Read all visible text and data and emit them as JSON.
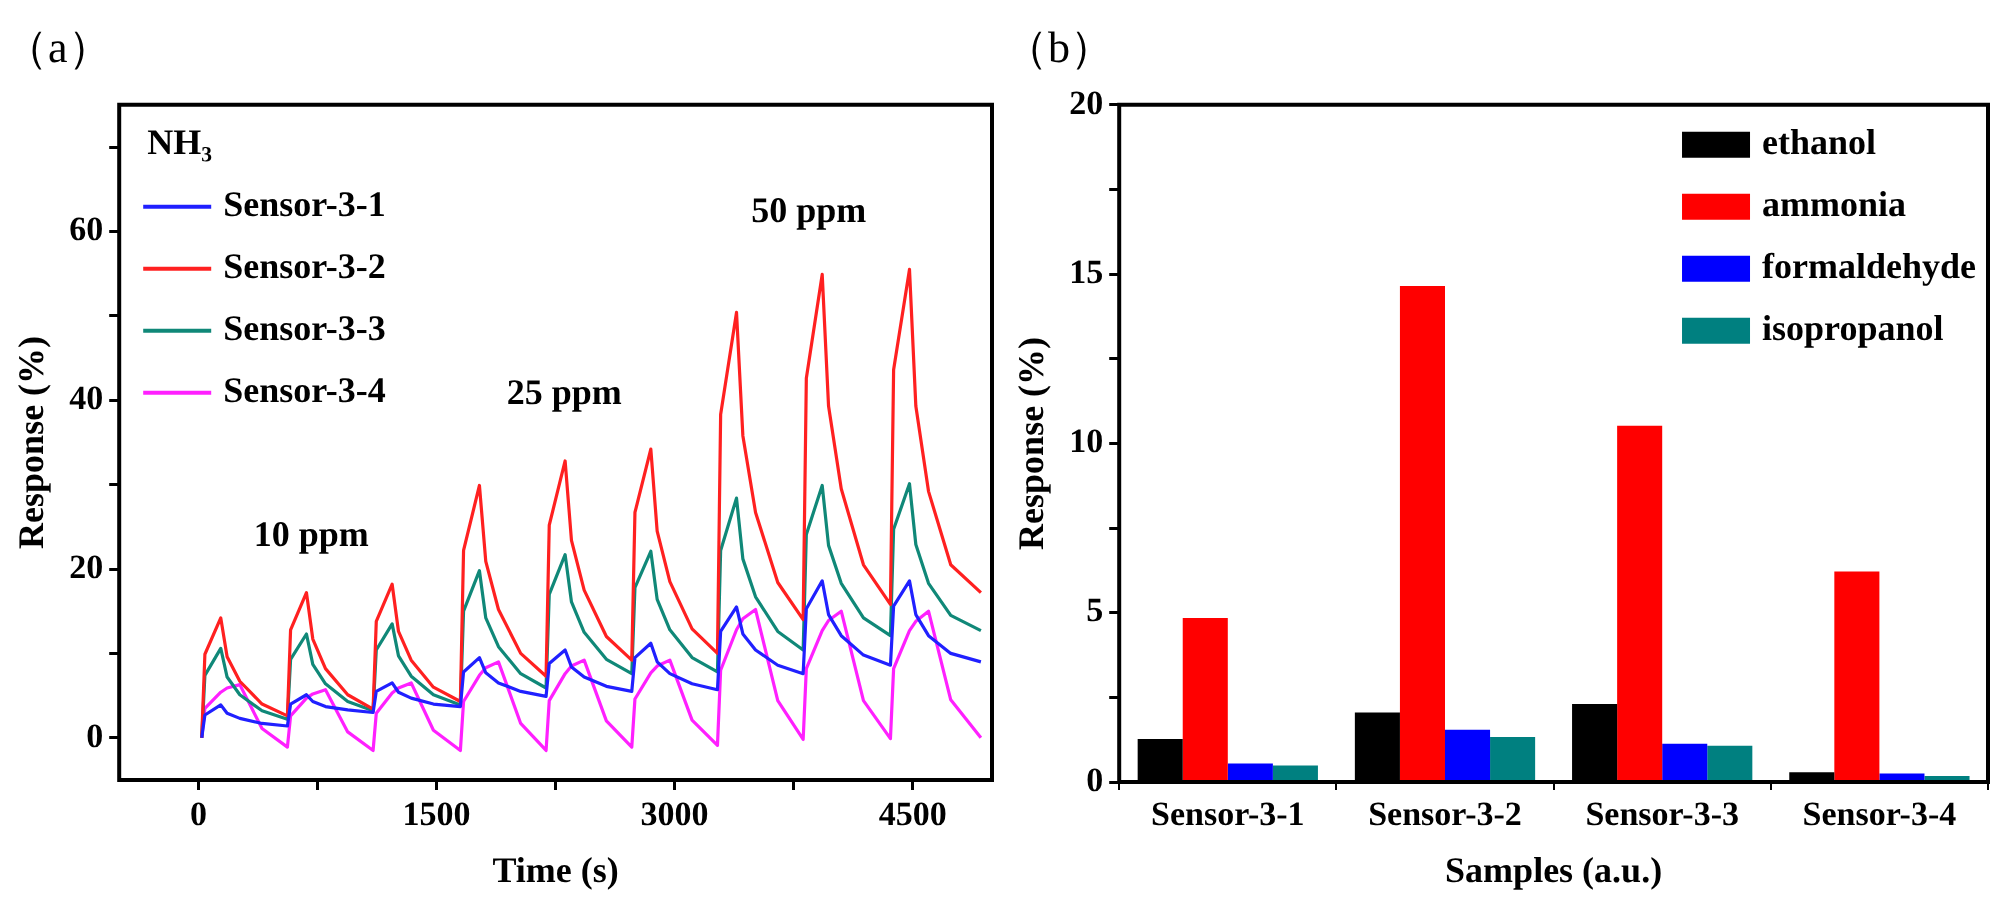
{
  "chart_data": [
    {
      "type": "line",
      "title": "（a）",
      "xlabel": "Time (s)",
      "ylabel": "Response (%)",
      "legend": "top left",
      "legend_title": "NH₃",
      "xlim": [
        -500,
        5000
      ],
      "xticks": [
        0,
        {
          "value": 750,
          "label": null
        },
        1500,
        {
          "value": 2250,
          "label": null
        },
        3000,
        {
          "value": 3750,
          "label": null
        },
        4500
      ],
      "ylim": [
        -5,
        75
      ],
      "yticks": [
        0,
        {
          "value": 10,
          "label": null
        },
        20,
        {
          "value": 30,
          "label": null
        },
        40,
        {
          "value": 50,
          "label": null
        },
        60,
        {
          "value": 70,
          "label": null
        }
      ],
      "x": [
        20,
        40,
        140,
        180,
        260,
        400,
        560,
        580,
        680,
        720,
        800,
        940,
        1100,
        1120,
        1220,
        1260,
        1340,
        1480,
        1650,
        1670,
        1770,
        1810,
        1890,
        2030,
        2190,
        2210,
        2310,
        2350,
        2430,
        2570,
        2730,
        2750,
        2850,
        2890,
        2970,
        3110,
        3270,
        3290,
        3390,
        3430,
        3510,
        3650,
        3810,
        3830,
        3930,
        3970,
        4050,
        4190,
        4360,
        4380,
        4480,
        4520,
        4600,
        4740,
        4930
      ],
      "series": [
        {
          "name": "Sensor-3-1",
          "color": "#2020ff",
          "values": [
            0,
            2.7,
            3.9,
            2.9,
            2.3,
            1.7,
            1.4,
            4.0,
            5.1,
            4.3,
            3.7,
            3.3,
            3.0,
            5.5,
            6.5,
            5.4,
            4.7,
            4.0,
            3.7,
            7.8,
            9.5,
            7.7,
            6.5,
            5.5,
            4.9,
            8.8,
            10.4,
            8.4,
            7.2,
            6.1,
            5.5,
            9.5,
            11.2,
            9.0,
            7.6,
            6.4,
            5.7,
            12.6,
            15.5,
            12.3,
            10.4,
            8.6,
            7.6,
            15.3,
            18.6,
            14.6,
            12.1,
            9.8,
            8.6,
            15.6,
            18.6,
            14.6,
            12.1,
            10.0,
            9.0
          ]
        },
        {
          "name": "Sensor-3-2",
          "color": "#ff2020",
          "values": [
            0,
            9.9,
            14.2,
            9.6,
            6.7,
            4.0,
            2.6,
            12.8,
            17.2,
            11.7,
            8.2,
            5.1,
            3.4,
            13.8,
            18.2,
            12.6,
            9.2,
            6.0,
            4.3,
            22.2,
            29.9,
            20.9,
            15.2,
            10.0,
            7.3,
            25.2,
            32.8,
            23.4,
            17.5,
            12.0,
            9.2,
            26.7,
            34.2,
            24.5,
            18.5,
            12.9,
            10.0,
            38.3,
            50.4,
            35.8,
            26.7,
            18.4,
            14.0,
            42.6,
            54.9,
            39.3,
            29.5,
            20.5,
            15.8,
            43.6,
            55.5,
            39.3,
            29.2,
            20.5,
            17.2
          ]
        },
        {
          "name": "Sensor-3-3",
          "color": "#108878",
          "values": [
            0,
            7.4,
            10.6,
            7.2,
            5.1,
            3.2,
            2.2,
            9.3,
            12.3,
            8.7,
            6.4,
            4.3,
            3.2,
            10.4,
            13.5,
            9.7,
            7.3,
            5.1,
            3.9,
            15.0,
            19.8,
            14.2,
            10.8,
            7.6,
            5.9,
            17.0,
            21.7,
            16.1,
            12.5,
            9.3,
            7.6,
            17.8,
            22.1,
            16.4,
            12.8,
            9.5,
            7.8,
            22.2,
            28.4,
            21.2,
            16.7,
            12.6,
            10.4,
            24.1,
            29.9,
            22.8,
            18.3,
            14.2,
            12.1,
            24.7,
            30.1,
            22.9,
            18.3,
            14.5,
            12.7
          ]
        },
        {
          "name": "Sensor-3-4",
          "color": "#ff20ff",
          "values": [
            0,
            3.5,
            5.4,
            5.9,
            6.3,
            1.1,
            -1.1,
            2.6,
            4.7,
            5.2,
            5.7,
            0.7,
            -1.5,
            2.9,
            5.3,
            5.9,
            6.5,
            0.9,
            -1.5,
            4.3,
            7.4,
            8.3,
            9.0,
            1.7,
            -1.5,
            4.4,
            7.6,
            8.5,
            9.2,
            2.0,
            -1.1,
            4.6,
            7.7,
            8.5,
            9.2,
            2.1,
            -0.9,
            8.0,
            12.8,
            14.1,
            15.2,
            4.4,
            -0.2,
            8.2,
            12.7,
            13.9,
            15.0,
            4.4,
            -0.1,
            8.2,
            12.7,
            13.8,
            15.0,
            4.5,
            0
          ]
        }
      ],
      "annotations": [
        "10 ppm",
        "25 ppm",
        "50 ppm"
      ]
    },
    {
      "type": "bar",
      "title": "（b）",
      "xlabel": "Samples (a.u.)",
      "ylabel": "Response (%)",
      "legend": "top right",
      "categories": [
        "Sensor-3-1",
        "Sensor-3-2",
        "Sensor-3-3",
        "Sensor-3-4"
      ],
      "ylim": [
        0,
        20
      ],
      "yticks": [
        0,
        {
          "value": 2.5,
          "label": null
        },
        5,
        {
          "value": 7.5,
          "label": null
        },
        10,
        {
          "value": 12.5,
          "label": null
        },
        15,
        {
          "value": 17.5,
          "label": null
        },
        20
      ],
      "series": [
        {
          "name": "ethanol",
          "color": "#000000",
          "values": [
            1.27,
            2.05,
            2.3,
            0.29
          ]
        },
        {
          "name": "ammonia",
          "color": "#ff0000",
          "values": [
            4.84,
            14.65,
            10.52,
            6.22
          ]
        },
        {
          "name": "formaldehyde",
          "color": "#0000ff",
          "values": [
            0.55,
            1.54,
            1.13,
            0.25
          ]
        },
        {
          "name": "isopropanol",
          "color": "#008080",
          "values": [
            0.49,
            1.33,
            1.07,
            0.18
          ]
        }
      ]
    }
  ]
}
